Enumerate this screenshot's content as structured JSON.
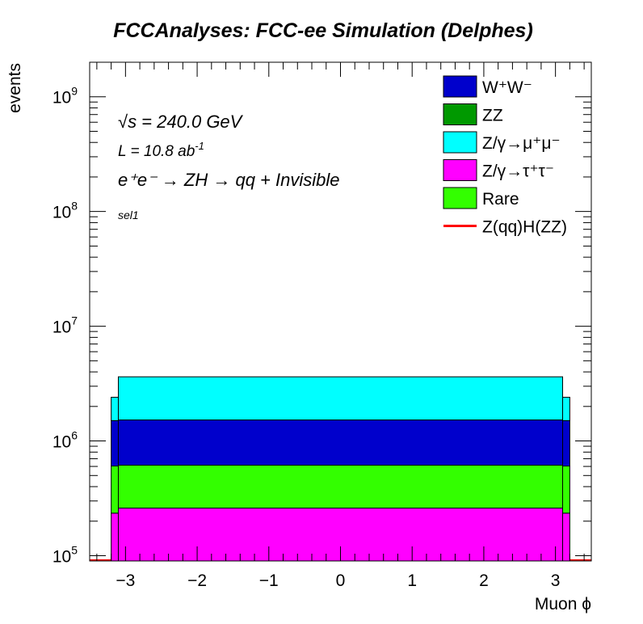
{
  "chart_data": {
    "type": "bar",
    "title": "FCCAnalyses: FCC-ee Simulation (Delphes)",
    "xlabel": "Muon ϕ",
    "ylabel": "events",
    "log_y": true,
    "xlim": [
      -3.5,
      3.5
    ],
    "ylim": [
      90000,
      2000000000
    ],
    "x_ticks": [
      -3,
      -2,
      -1,
      0,
      1,
      2,
      3
    ],
    "x_tick_labels": [
      "−3",
      "−2",
      "−1",
      "0",
      "1",
      "2",
      "3"
    ],
    "y_tick_labels": [
      {
        "base": "10",
        "exp": "5",
        "value": 100000
      },
      {
        "base": "10",
        "exp": "6",
        "value": 1000000
      },
      {
        "base": "10",
        "exp": "7",
        "value": 10000000
      },
      {
        "base": "10",
        "exp": "8",
        "value": 100000000
      },
      {
        "base": "10",
        "exp": "9",
        "value": 1000000000
      }
    ],
    "annotations": {
      "sqrt_s": "√s = 240.0 GeV",
      "lumi_text": "L = 10.8 ab",
      "lumi_sup": "-1",
      "process": "e⁺e⁻ → ZH → qq + Invisible",
      "selection": "sel1"
    },
    "stacked": true,
    "bins": [
      {
        "x0": -3.5,
        "x1": -3.2,
        "tautau": 0,
        "rare": 0,
        "ww": 0,
        "mumu": 0
      },
      {
        "x0": -3.2,
        "x1": -3.1,
        "tautau": 145000,
        "rare": 370000,
        "ww": 900000,
        "mumu": 900000
      },
      {
        "x0": -3.1,
        "x1": 3.1,
        "tautau": 170000,
        "rare": 355000,
        "ww": 910000,
        "mumu": 2100000
      },
      {
        "x0": 3.1,
        "x1": 3.2,
        "tautau": 145000,
        "rare": 370000,
        "ww": 900000,
        "mumu": 900000
      },
      {
        "x0": 3.2,
        "x1": 3.5,
        "tautau": 0,
        "rare": 0,
        "ww": 0,
        "mumu": 0
      }
    ],
    "series": [
      {
        "key": "ww",
        "name": "W⁺W⁻",
        "color": "#0000cc"
      },
      {
        "key": "zz",
        "name": "ZZ",
        "color": "#009900"
      },
      {
        "key": "mumu",
        "name": "Z/γ→μ⁺μ⁻",
        "color": "#00ffff"
      },
      {
        "key": "tautau",
        "name": "Z/γ→τ⁺τ⁻",
        "color": "#ff00ff"
      },
      {
        "key": "rare",
        "name": "Rare",
        "color": "#33ff00"
      },
      {
        "key": "signal",
        "name": "Z(qq)H(ZZ)",
        "color": "#ff0000",
        "style": "line"
      }
    ],
    "stack_order": [
      "tautau",
      "rare",
      "ww",
      "mumu"
    ],
    "legend_position": "top-right"
  }
}
